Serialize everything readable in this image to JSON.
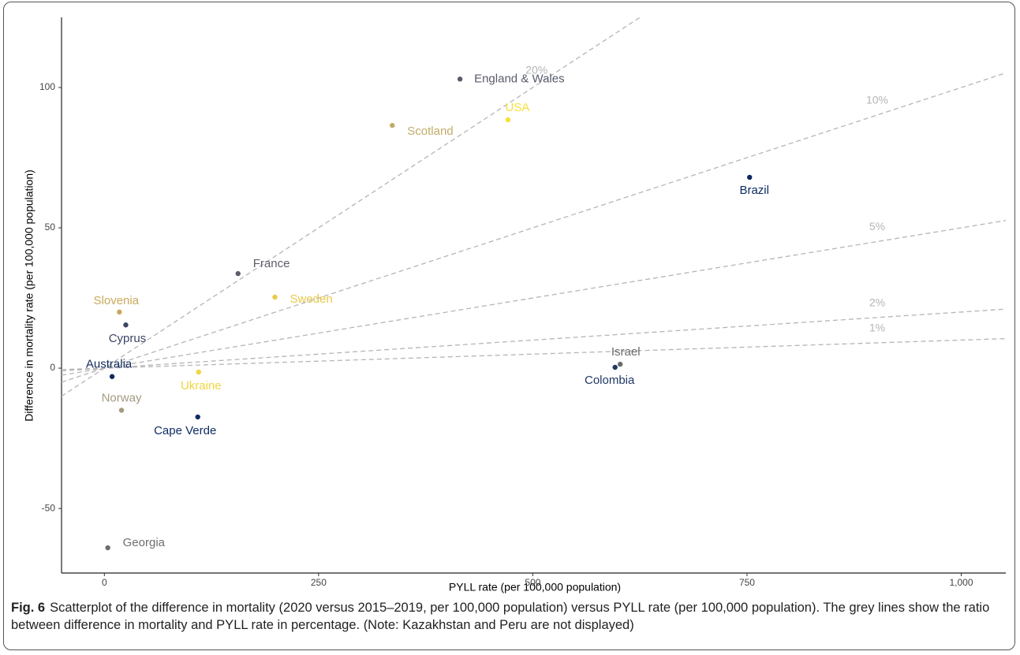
{
  "chart_data": {
    "type": "scatter",
    "x_label": "PYLL rate (per 100,000 population)",
    "y_label": "Difference in mortality rate (per 100,000 population)",
    "xlim": [
      -50,
      1052
    ],
    "ylim": [
      -73,
      125
    ],
    "xticks": [
      0,
      250,
      500,
      750,
      {
        "value": 1000,
        "label": "1,000"
      }
    ],
    "yticks": [
      -50,
      0,
      50,
      100
    ],
    "grid": false,
    "reference_lines": [
      {
        "value": 20,
        "label": "20%"
      },
      {
        "value": 10,
        "label": "10%"
      },
      {
        "value": 5,
        "label": "5%"
      },
      {
        "value": 2,
        "label": "2%"
      },
      {
        "value": 1,
        "label": "1%"
      }
    ],
    "reference_color": "#b5b5b5",
    "points": [
      {
        "label": "England & Wales",
        "x": 415,
        "y": 103,
        "color": "#585b6c"
      },
      {
        "label": "USA",
        "x": 471,
        "y": 88.5,
        "color": "#f6e03a"
      },
      {
        "label": "Scotland",
        "x": 336,
        "y": 86.5,
        "color": "#c2ab68"
      },
      {
        "label": "Brazil",
        "x": 753,
        "y": 68,
        "color": "#0c2a62"
      },
      {
        "label": "France",
        "x": 156,
        "y": 33.7,
        "color": "#5c5f6a"
      },
      {
        "label": "Sweden",
        "x": 199,
        "y": 25.3,
        "color": "#e8c94a"
      },
      {
        "label": "Slovenia",
        "x": 17.5,
        "y": 20,
        "color": "#c9a85a"
      },
      {
        "label": "Cyprus",
        "x": 25,
        "y": 15.4,
        "color": "#3b4566"
      },
      {
        "label": "Australia",
        "x": 9,
        "y": -3,
        "color": "#122a5a"
      },
      {
        "label": "Ukraine",
        "x": 110,
        "y": -1.4,
        "color": "#f0d640"
      },
      {
        "label": "Norway",
        "x": 20,
        "y": -15,
        "color": "#a39a80"
      },
      {
        "label": "Cape Verde",
        "x": 109,
        "y": -17.4,
        "color": "#0e2c66"
      },
      {
        "label": "Israel",
        "x": 602,
        "y": 1.4,
        "color": "#6a6a6a"
      },
      {
        "label": "Colombia",
        "x": 596,
        "y": 0.3,
        "color": "#213864"
      },
      {
        "label": "Georgia",
        "x": 4,
        "y": -64,
        "color": "#6e6e6e"
      }
    ]
  },
  "caption": {
    "label": "Fig. 6",
    "text": "Scatterplot of the difference in mortality (2020 versus 2015–2019, per 100,000 population) versus PYLL rate (per 100,000 population). The grey lines show the ratio between difference in mortality and PYLL rate in percentage. (Note: Kazakhstan and Peru are not displayed)"
  }
}
